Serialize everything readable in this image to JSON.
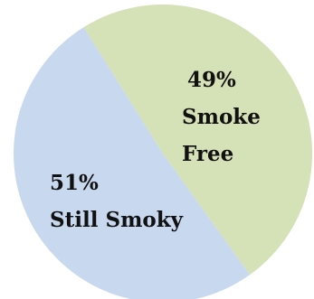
{
  "chart_data": {
    "type": "pie",
    "title": "",
    "slices": [
      {
        "percent_label": "49%",
        "label_lines": [
          "Smoke",
          "Free"
        ],
        "value": 49,
        "color": "#d5e1b6"
      },
      {
        "percent_label": "51%",
        "label_lines": [
          "Still Smoky"
        ],
        "value": 51,
        "color": "#c8d8ef"
      }
    ],
    "legend": "none"
  }
}
